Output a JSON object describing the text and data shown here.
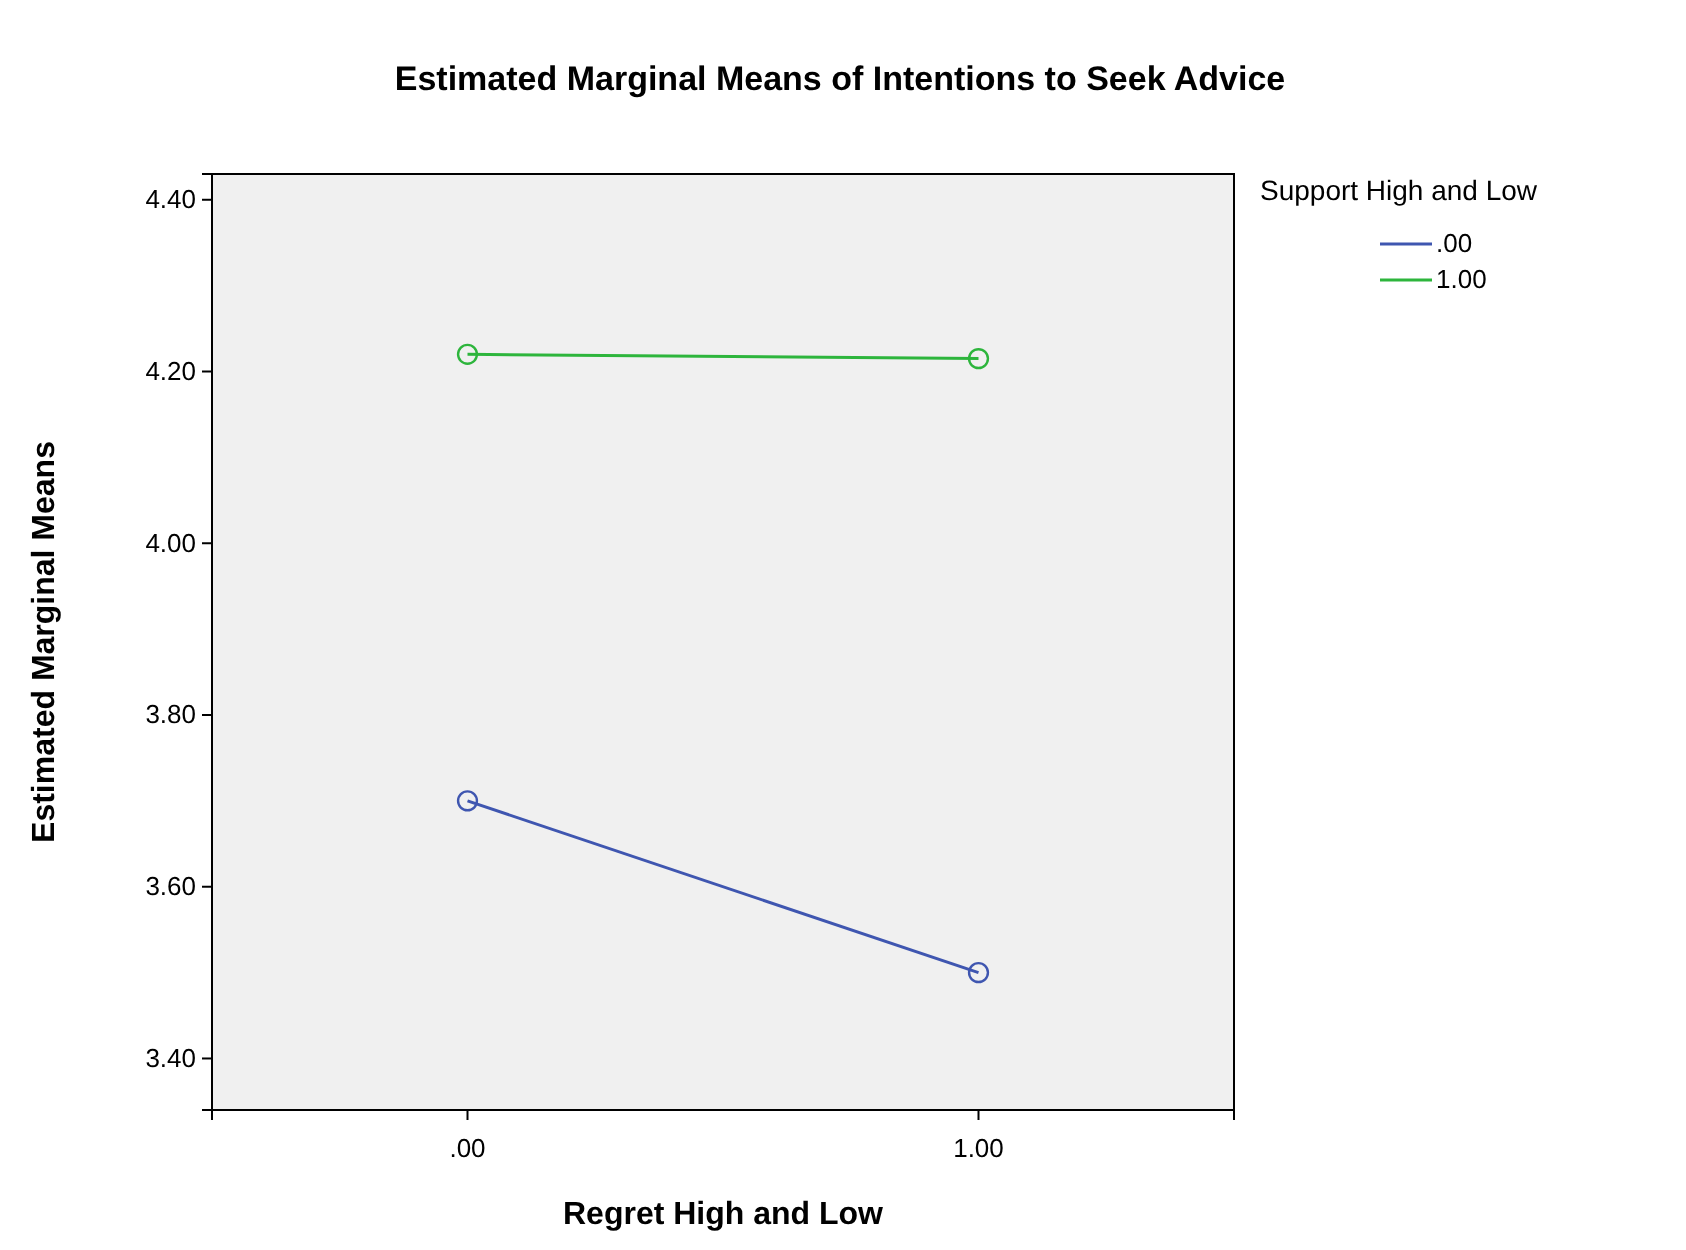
{
  "chart_data": {
    "type": "line",
    "title": "Estimated Marginal Means of Intentions to Seek Advice",
    "xlabel": "Regret High and Low",
    "ylabel": "Estimated Marginal Means",
    "legend_title": "Support High and Low",
    "categories": [
      ".00",
      "1.00"
    ],
    "series": [
      {
        "name": ".00",
        "color": "#3f56b0",
        "values": [
          3.7,
          3.5
        ]
      },
      {
        "name": "1.00",
        "color": "#2db53c",
        "values": [
          4.22,
          4.215
        ]
      }
    ],
    "ylim": [
      3.34,
      4.43
    ],
    "yticks": [
      {
        "value": 3.4,
        "label": "3.40"
      },
      {
        "value": 3.6,
        "label": "3.60"
      },
      {
        "value": 3.8,
        "label": "3.80"
      },
      {
        "value": 4.0,
        "label": "4.00"
      },
      {
        "value": 4.2,
        "label": "4.20"
      },
      {
        "value": 4.4,
        "label": "4.40"
      }
    ],
    "grid": false,
    "legend": "top right",
    "marker": "circle",
    "line_style": "solid"
  }
}
